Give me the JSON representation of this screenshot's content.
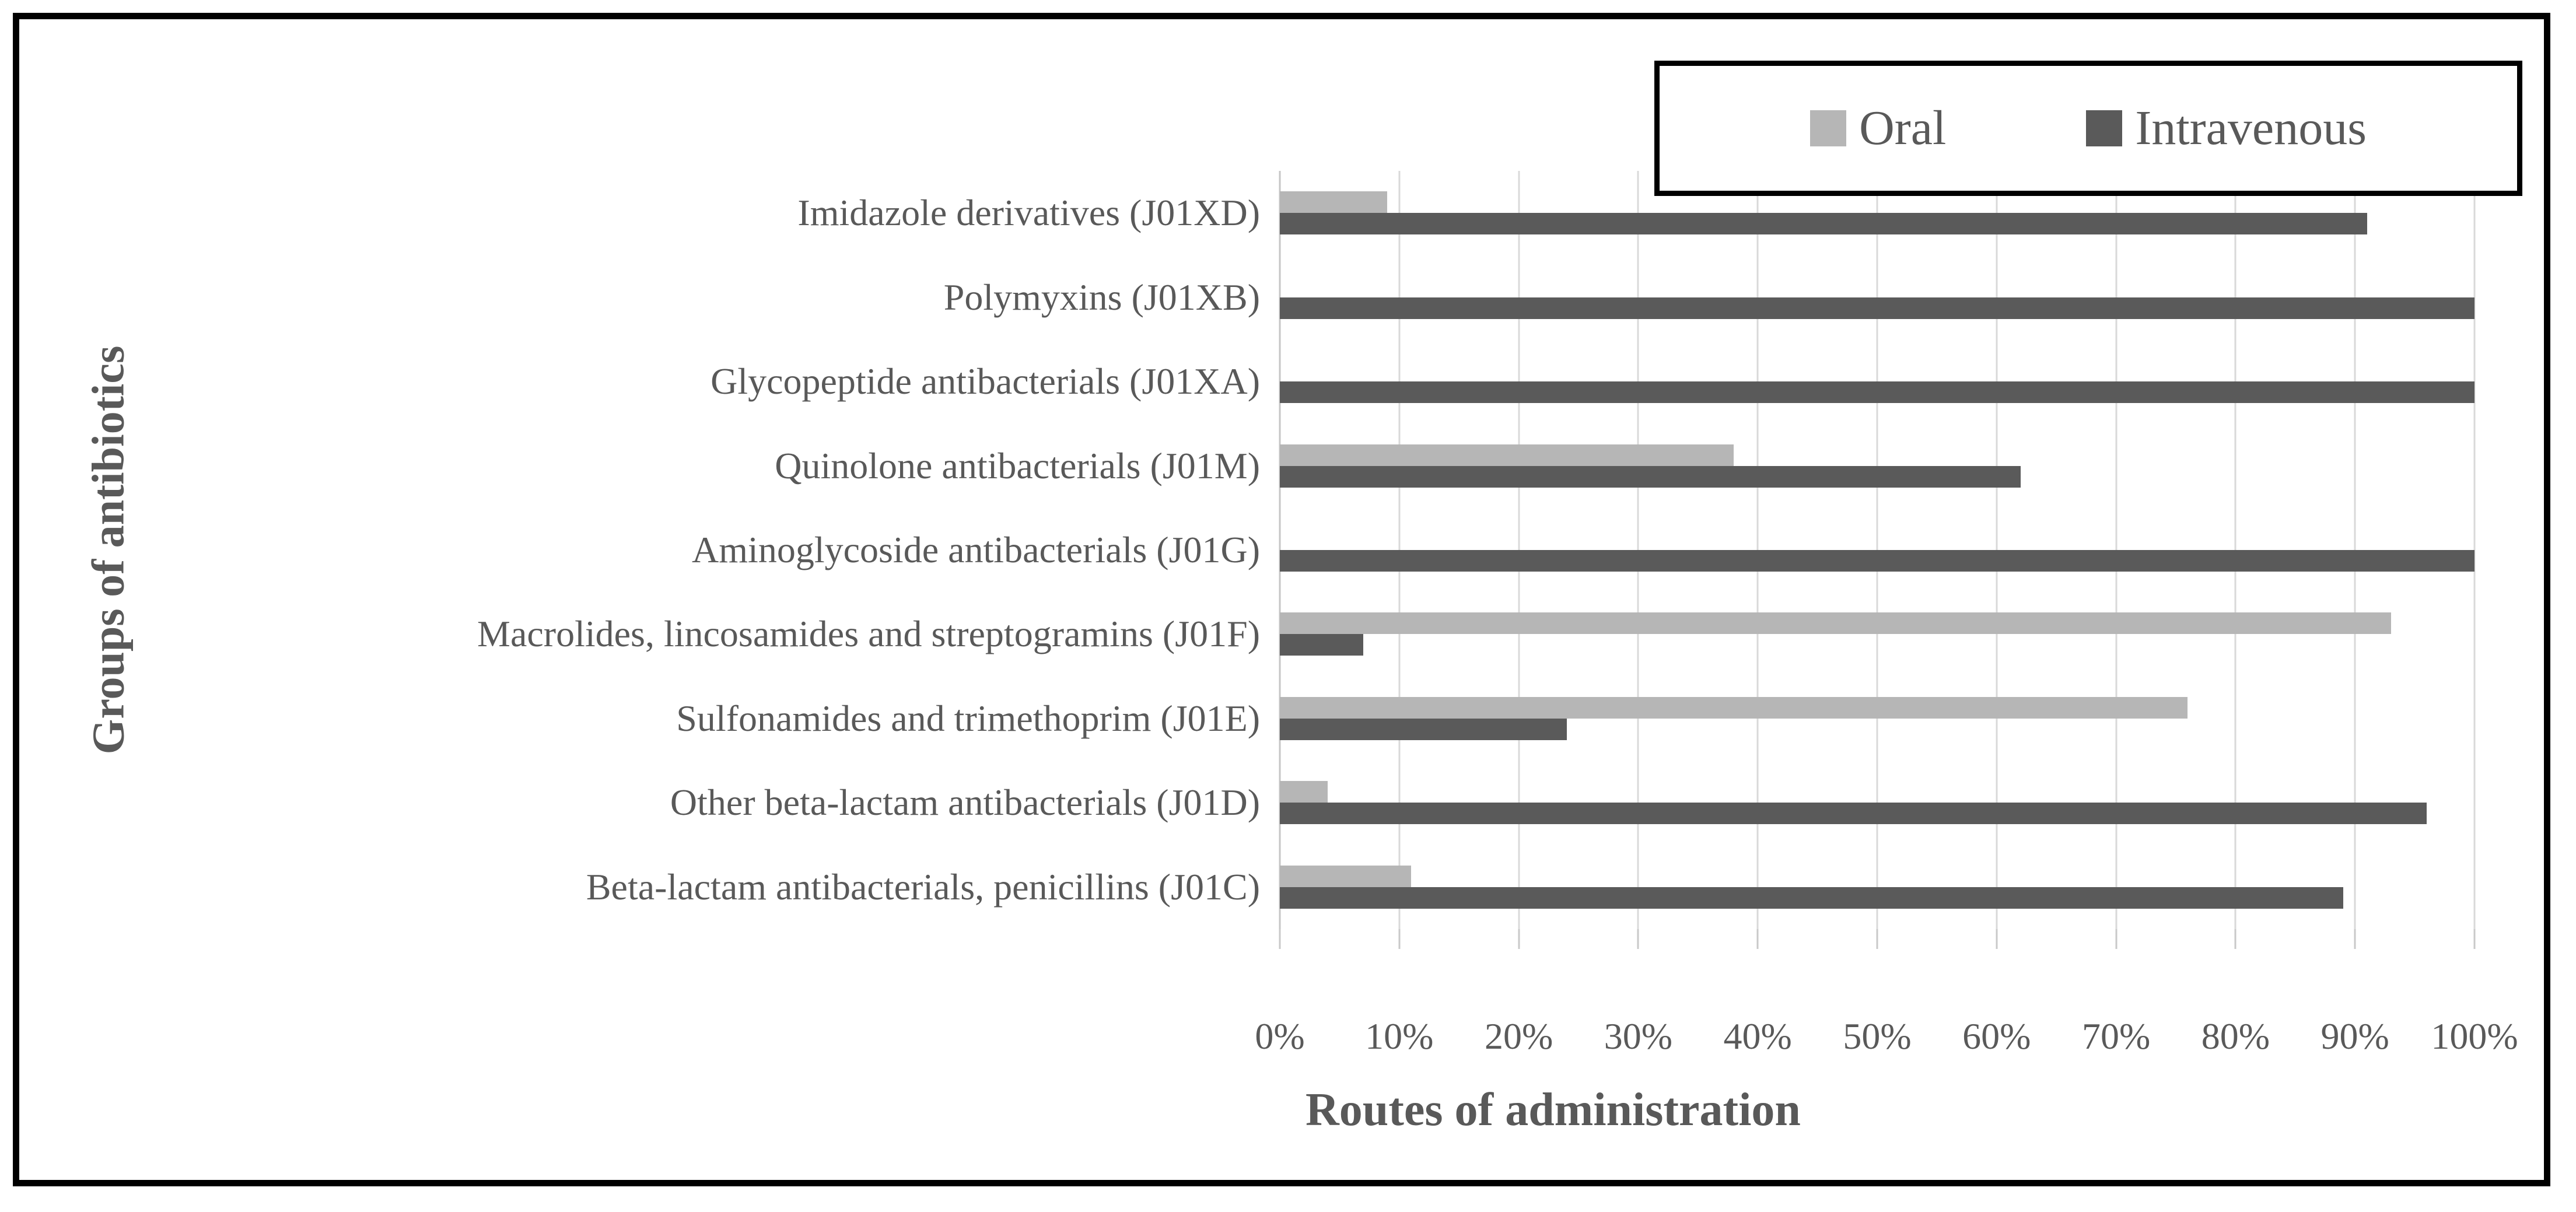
{
  "chart_data": {
    "type": "bar",
    "orientation": "horizontal-grouped",
    "title": "",
    "xlabel": "Routes of administration",
    "ylabel": "Groups of antibiotics",
    "categories": [
      "Imidazole derivatives (J01XD)",
      "Polymyxins (J01XB)",
      "Glycopeptide antibacterials (J01XA)",
      "Quinolone antibacterials (J01M)",
      "Aminoglycoside antibacterials (J01G)",
      "Macrolides, lincosamides and streptogramins (J01F)",
      "Sulfonamides and trimethoprim (J01E)",
      "Other beta-lactam antibacterials (J01D)",
      "Beta-lactam antibacterials, penicillins (J01C)"
    ],
    "series": [
      {
        "name": "Oral",
        "color": "#b6b6b6",
        "values": [
          9,
          0,
          0,
          38,
          0,
          93,
          76,
          4,
          11
        ]
      },
      {
        "name": "Intravenous",
        "color": "#5a5a5a",
        "values": [
          91,
          100,
          100,
          62,
          100,
          7,
          24,
          96,
          89
        ]
      }
    ],
    "x_ticks": [
      "0%",
      "10%",
      "20%",
      "30%",
      "40%",
      "50%",
      "60%",
      "70%",
      "80%",
      "90%",
      "100%"
    ],
    "xlim": [
      0,
      100
    ],
    "grid": "vertical-only",
    "legend_position": "top-right",
    "colors": {
      "gridline": "#d9d9d9",
      "text": "#595959",
      "frame_border": "#000000",
      "background": "#ffffff"
    }
  }
}
